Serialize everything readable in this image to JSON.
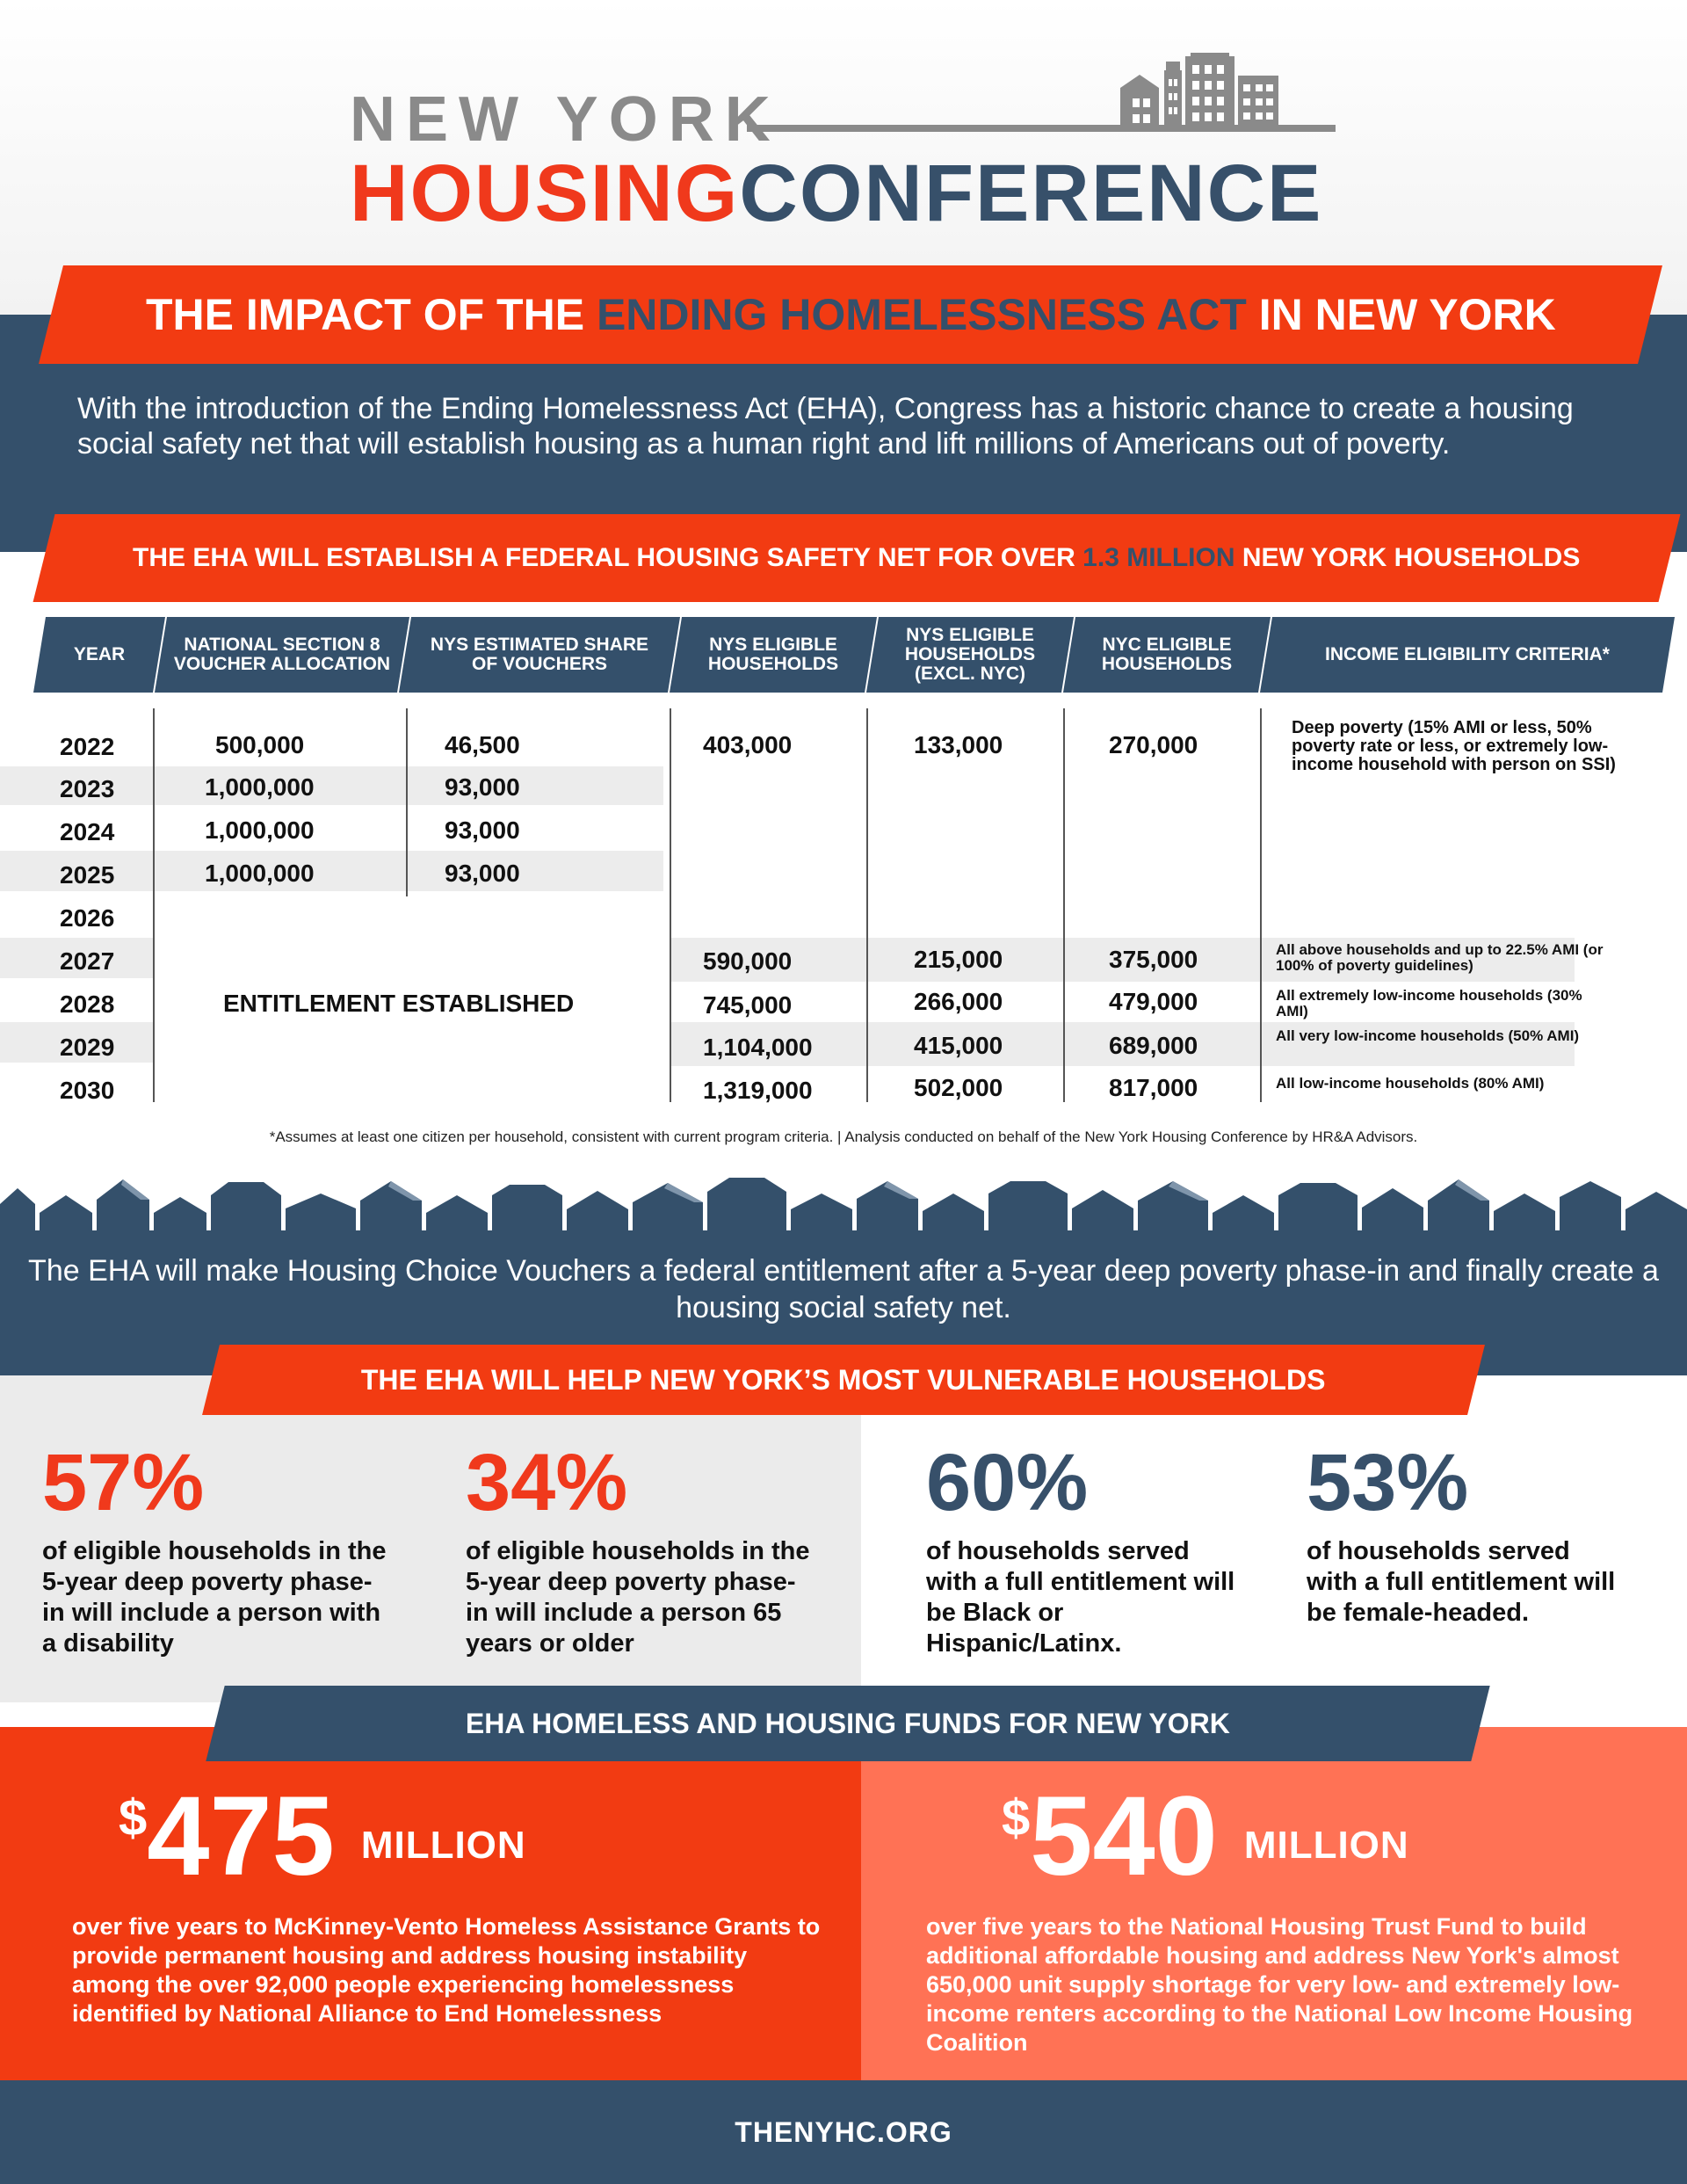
{
  "logo": {
    "line1": "NEW YORK",
    "housing": "HOUSING",
    "conference": "CONFERENCE"
  },
  "title": {
    "pre": "THE IMPACT OF THE ",
    "highlight": "ENDING HOMELESSNESS ACT",
    "post": " IN NEW YORK"
  },
  "intro": "With the introduction of the Ending Homelessness Act (EHA), Congress has a historic chance to create a housing social safety net that will establish housing as a human right and lift millions of Americans out of poverty.",
  "subtitle": {
    "pre": "THE EHA WILL ESTABLISH A FEDERAL HOUSING SAFETY NET FOR OVER ",
    "highlight": "1.3 MILLION",
    "post": " NEW YORK HOUSEHOLDS"
  },
  "table": {
    "headers": [
      "YEAR",
      "NATIONAL SECTION 8 VOUCHER ALLOCATION",
      "NYS ESTIMATED SHARE OF VOUCHERS",
      "NYS ELIGIBLE HOUSEHOLDS",
      "NYS ELIGIBLE HOUSEHOLDS (EXCL. NYC)",
      "NYC ELIGIBLE HOUSEHOLDS",
      "INCOME ELIGIBILITY CRITERIA*"
    ],
    "years": [
      "2022",
      "2023",
      "2024",
      "2025",
      "2026",
      "2027",
      "2028",
      "2029",
      "2030"
    ],
    "allocation": [
      "500,000",
      "1,000,000",
      "1,000,000",
      "1,000,000"
    ],
    "share": [
      "46,500",
      "93,000",
      "93,000",
      "93,000"
    ],
    "entitlement": "ENTITLEMENT ESTABLISHED",
    "nys_eligible": [
      "403,000",
      "590,000",
      "745,000",
      "1,104,000",
      "1,319,000"
    ],
    "nys_excl": [
      "133,000",
      "215,000",
      "266,000",
      "415,000",
      "502,000"
    ],
    "nyc_eligible": [
      "270,000",
      "375,000",
      "479,000",
      "689,000",
      "817,000"
    ],
    "criteria": [
      "Deep poverty (15% AMI or less, 50% poverty rate or less, or extremely low-income household with person on SSI)",
      "All above households and up to 22.5% AMI (or 100% of poverty guidelines)",
      "All extremely low-income households (30% AMI)",
      "All very low-income households (50% AMI)",
      "All low-income households (80% AMI)"
    ]
  },
  "footnote": "*Assumes at least one citizen per household, consistent with current program criteria.  |  Analysis conducted on behalf of the New York Housing Conference by HR&A Advisors.",
  "eha_statement": "The EHA will make Housing Choice Vouchers a federal entitlement after a 5-year deep poverty phase-in and finally create a housing social safety net.",
  "vulnerable": {
    "heading": "THE EHA WILL HELP NEW YORK’S MOST VULNERABLE HOUSEHOLDS",
    "stats": [
      {
        "value": "57%",
        "desc": "of eligible households in the 5-year deep poverty phase-in will include a person with a disability"
      },
      {
        "value": "34%",
        "desc": "of eligible households in the 5-year deep poverty phase-in will include a person 65 years or older"
      },
      {
        "value": "60%",
        "desc": "of households served with a full entitlement will be Black or Hispanic/Latinx."
      },
      {
        "value": "53%",
        "desc": "of households served with a full entitlement will be female-headed."
      }
    ]
  },
  "funds": {
    "heading": "EHA HOMELESS AND HOUSING FUNDS FOR NEW YORK",
    "items": [
      {
        "dollar": "$",
        "amount": "475",
        "unit": "MILLION",
        "desc": "over five years to McKinney-Vento Homeless Assistance Grants to provide permanent housing and address housing instability among the over 92,000 people experiencing homelessness identified by National Alliance to End Homelessness"
      },
      {
        "dollar": "$",
        "amount": "540",
        "unit": "MILLION",
        "desc": "over five years to the National Housing Trust Fund to build additional affordable housing and address New York's almost 650,000 unit supply shortage for very low- and extremely low-income renters according to the National Low Income Housing Coalition"
      }
    ]
  },
  "footer": "THENYHC.ORG",
  "colors": {
    "navy": "#34506b",
    "orange": "#f23b12",
    "salmon": "#ff7255",
    "gray": "#8a8a8a"
  },
  "icons": {
    "logo": "buildings-icon",
    "skyline": "houses-skyline"
  }
}
